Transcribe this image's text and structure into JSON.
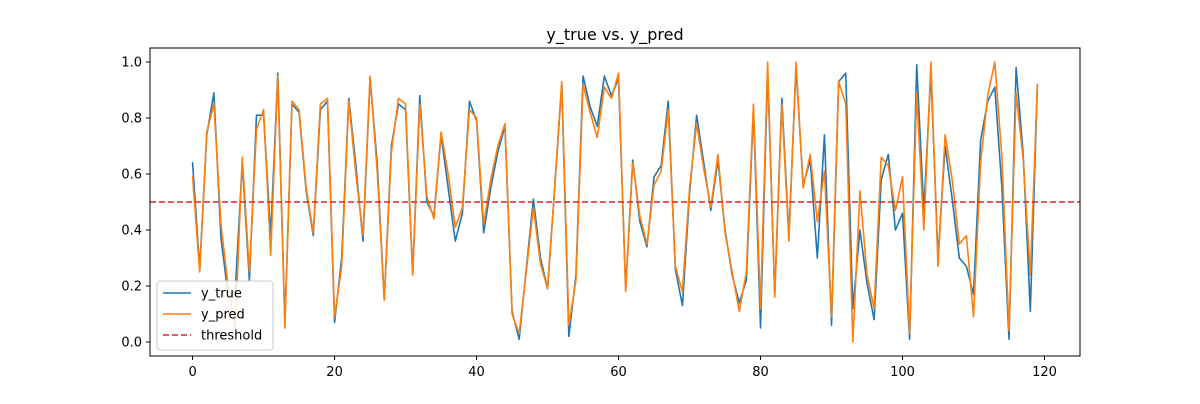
{
  "chart_data": {
    "type": "line",
    "title": "y_true vs. y_pred",
    "xlabel": "",
    "ylabel": "",
    "xlim": [
      -6,
      125
    ],
    "ylim": [
      -0.05,
      1.05
    ],
    "x_ticks": [
      0,
      20,
      40,
      60,
      80,
      100,
      120
    ],
    "x_tick_labels": [
      "0",
      "20",
      "40",
      "60",
      "80",
      "100",
      "120"
    ],
    "y_ticks": [
      0.0,
      0.2,
      0.4,
      0.6,
      0.8,
      1.0
    ],
    "y_tick_labels": [
      "0.0",
      "0.2",
      "0.4",
      "0.6",
      "0.8",
      "1.0"
    ],
    "grid": false,
    "legend_position": "lower-left",
    "threshold": {
      "name": "threshold",
      "value": 0.5,
      "color": "#d62728"
    },
    "series": [
      {
        "name": "y_true",
        "color": "#1f77b4",
        "values": [
          0.64,
          0.26,
          0.74,
          0.89,
          0.37,
          0.17,
          0.18,
          0.64,
          0.22,
          0.81,
          0.81,
          0.38,
          0.96,
          0.07,
          0.85,
          0.82,
          0.54,
          0.38,
          0.83,
          0.86,
          0.07,
          0.3,
          0.87,
          0.63,
          0.36,
          0.94,
          0.64,
          0.15,
          0.7,
          0.85,
          0.83,
          0.24,
          0.88,
          0.5,
          0.45,
          0.74,
          0.55,
          0.36,
          0.46,
          0.86,
          0.79,
          0.39,
          0.55,
          0.68,
          0.77,
          0.11,
          0.01,
          0.26,
          0.51,
          0.3,
          0.19,
          0.55,
          0.92,
          0.02,
          0.24,
          0.95,
          0.84,
          0.77,
          0.95,
          0.88,
          0.94,
          0.19,
          0.65,
          0.43,
          0.34,
          0.59,
          0.63,
          0.86,
          0.26,
          0.13,
          0.53,
          0.81,
          0.64,
          0.47,
          0.65,
          0.4,
          0.24,
          0.14,
          0.22,
          0.83,
          0.05,
          0.97,
          0.17,
          0.87,
          0.38,
          0.98,
          0.56,
          0.65,
          0.3,
          0.74,
          0.06,
          0.93,
          0.96,
          0.12,
          0.4,
          0.21,
          0.08,
          0.58,
          0.67,
          0.4,
          0.46,
          0.01,
          0.99,
          0.47,
          0.96,
          0.3,
          0.7,
          0.51,
          0.3,
          0.27,
          0.17,
          0.72,
          0.86,
          0.91,
          0.55,
          0.01,
          0.98,
          0.67,
          0.11,
          0.92
        ]
      },
      {
        "name": "y_pred",
        "color": "#ff7f0e",
        "values": [
          0.59,
          0.25,
          0.75,
          0.85,
          0.42,
          0.2,
          0.05,
          0.66,
          0.25,
          0.76,
          0.83,
          0.31,
          0.95,
          0.05,
          0.86,
          0.83,
          0.55,
          0.39,
          0.85,
          0.87,
          0.09,
          0.27,
          0.86,
          0.6,
          0.38,
          0.95,
          0.61,
          0.15,
          0.68,
          0.87,
          0.85,
          0.24,
          0.85,
          0.52,
          0.44,
          0.75,
          0.6,
          0.41,
          0.48,
          0.83,
          0.8,
          0.42,
          0.58,
          0.7,
          0.78,
          0.1,
          0.03,
          0.25,
          0.48,
          0.28,
          0.19,
          0.55,
          0.93,
          0.06,
          0.22,
          0.92,
          0.82,
          0.73,
          0.91,
          0.87,
          0.96,
          0.18,
          0.64,
          0.45,
          0.35,
          0.56,
          0.61,
          0.83,
          0.27,
          0.18,
          0.55,
          0.78,
          0.62,
          0.48,
          0.67,
          0.39,
          0.25,
          0.11,
          0.25,
          0.85,
          0.12,
          1.0,
          0.16,
          0.85,
          0.36,
          1.0,
          0.55,
          0.67,
          0.43,
          0.61,
          0.09,
          0.93,
          0.85,
          0.0,
          0.54,
          0.24,
          0.12,
          0.66,
          0.63,
          0.47,
          0.59,
          0.03,
          0.89,
          0.4,
          1.0,
          0.27,
          0.74,
          0.58,
          0.35,
          0.38,
          0.09,
          0.64,
          0.88,
          1.0,
          0.66,
          0.04,
          0.89,
          0.65,
          0.24,
          0.92
        ]
      }
    ]
  }
}
